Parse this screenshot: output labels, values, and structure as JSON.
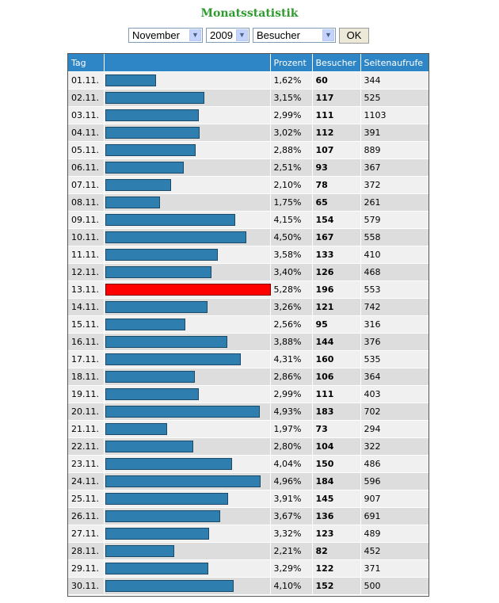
{
  "page_title": "Monatsstatistik",
  "controls": {
    "month": "November",
    "year": "2009",
    "metric": "Besucher",
    "ok_label": "OK"
  },
  "colors": {
    "header": "#2f86c6",
    "bar": "#2e7faf",
    "bar_max": "#ff0000",
    "title": "#2e9b2e"
  },
  "table": {
    "headers": [
      "Tag",
      "",
      "Prozent",
      "Besucher",
      "Seitenaufrufe"
    ],
    "rows": [
      {
        "day": "01.11.",
        "percent": "1,62%",
        "visitors": "60",
        "pageviews": "344"
      },
      {
        "day": "02.11.",
        "percent": "3,15%",
        "visitors": "117",
        "pageviews": "525"
      },
      {
        "day": "03.11.",
        "percent": "2,99%",
        "visitors": "111",
        "pageviews": "1103"
      },
      {
        "day": "04.11.",
        "percent": "3,02%",
        "visitors": "112",
        "pageviews": "391"
      },
      {
        "day": "05.11.",
        "percent": "2,88%",
        "visitors": "107",
        "pageviews": "889"
      },
      {
        "day": "06.11.",
        "percent": "2,51%",
        "visitors": "93",
        "pageviews": "367"
      },
      {
        "day": "07.11.",
        "percent": "2,10%",
        "visitors": "78",
        "pageviews": "372"
      },
      {
        "day": "08.11.",
        "percent": "1,75%",
        "visitors": "65",
        "pageviews": "261"
      },
      {
        "day": "09.11.",
        "percent": "4,15%",
        "visitors": "154",
        "pageviews": "579"
      },
      {
        "day": "10.11.",
        "percent": "4,50%",
        "visitors": "167",
        "pageviews": "558"
      },
      {
        "day": "11.11.",
        "percent": "3,58%",
        "visitors": "133",
        "pageviews": "410"
      },
      {
        "day": "12.11.",
        "percent": "3,40%",
        "visitors": "126",
        "pageviews": "468"
      },
      {
        "day": "13.11.",
        "percent": "5,28%",
        "visitors": "196",
        "pageviews": "553"
      },
      {
        "day": "14.11.",
        "percent": "3,26%",
        "visitors": "121",
        "pageviews": "742"
      },
      {
        "day": "15.11.",
        "percent": "2,56%",
        "visitors": "95",
        "pageviews": "316"
      },
      {
        "day": "16.11.",
        "percent": "3,88%",
        "visitors": "144",
        "pageviews": "376"
      },
      {
        "day": "17.11.",
        "percent": "4,31%",
        "visitors": "160",
        "pageviews": "535"
      },
      {
        "day": "18.11.",
        "percent": "2,86%",
        "visitors": "106",
        "pageviews": "364"
      },
      {
        "day": "19.11.",
        "percent": "2,99%",
        "visitors": "111",
        "pageviews": "403"
      },
      {
        "day": "20.11.",
        "percent": "4,93%",
        "visitors": "183",
        "pageviews": "702"
      },
      {
        "day": "21.11.",
        "percent": "1,97%",
        "visitors": "73",
        "pageviews": "294"
      },
      {
        "day": "22.11.",
        "percent": "2,80%",
        "visitors": "104",
        "pageviews": "322"
      },
      {
        "day": "23.11.",
        "percent": "4,04%",
        "visitors": "150",
        "pageviews": "486"
      },
      {
        "day": "24.11.",
        "percent": "4,96%",
        "visitors": "184",
        "pageviews": "596"
      },
      {
        "day": "25.11.",
        "percent": "3,91%",
        "visitors": "145",
        "pageviews": "907"
      },
      {
        "day": "26.11.",
        "percent": "3,67%",
        "visitors": "136",
        "pageviews": "691"
      },
      {
        "day": "27.11.",
        "percent": "3,32%",
        "visitors": "123",
        "pageviews": "489"
      },
      {
        "day": "28.11.",
        "percent": "2,21%",
        "visitors": "82",
        "pageviews": "452"
      },
      {
        "day": "29.11.",
        "percent": "3,29%",
        "visitors": "122",
        "pageviews": "371"
      },
      {
        "day": "30.11.",
        "percent": "4,10%",
        "visitors": "152",
        "pageviews": "500"
      }
    ]
  },
  "chart_data": {
    "type": "bar",
    "title": "Monatsstatistik",
    "orientation": "horizontal",
    "categories": [
      "01.11.",
      "02.11.",
      "03.11.",
      "04.11.",
      "05.11.",
      "06.11.",
      "07.11.",
      "08.11.",
      "09.11.",
      "10.11.",
      "11.11.",
      "12.11.",
      "13.11.",
      "14.11.",
      "15.11.",
      "16.11.",
      "17.11.",
      "18.11.",
      "19.11.",
      "20.11.",
      "21.11.",
      "22.11.",
      "23.11.",
      "24.11.",
      "25.11.",
      "26.11.",
      "27.11.",
      "28.11.",
      "29.11.",
      "30.11."
    ],
    "series": [
      {
        "name": "Besucher",
        "values": [
          60,
          117,
          111,
          112,
          107,
          93,
          78,
          65,
          154,
          167,
          133,
          126,
          196,
          121,
          95,
          144,
          160,
          106,
          111,
          183,
          73,
          104,
          150,
          184,
          145,
          136,
          123,
          82,
          122,
          152
        ]
      },
      {
        "name": "Seitenaufrufe",
        "values": [
          344,
          525,
          1103,
          391,
          889,
          367,
          372,
          261,
          579,
          558,
          410,
          468,
          553,
          742,
          316,
          376,
          535,
          364,
          403,
          702,
          294,
          322,
          486,
          596,
          907,
          691,
          489,
          452,
          371,
          500
        ]
      }
    ],
    "bar_series": "Besucher",
    "max_highlight_color": "#ff0000"
  }
}
